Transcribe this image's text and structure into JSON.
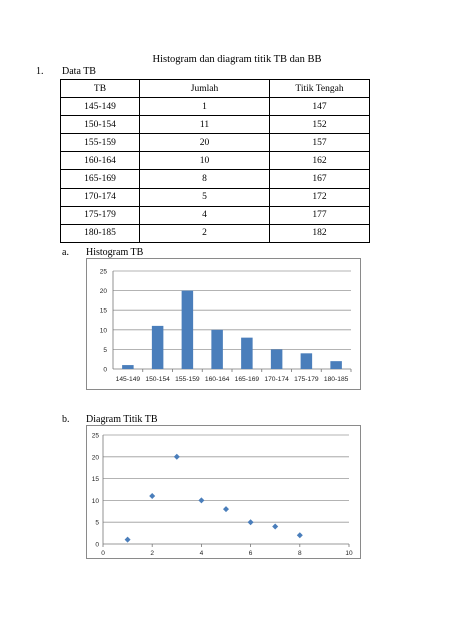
{
  "document": {
    "title": "Histogram dan diagram titik TB dan BB",
    "section1": {
      "number": "1.",
      "label": "Data TB"
    },
    "table": {
      "headers": [
        "TB",
        "Jumlah",
        "Titik Tengah"
      ],
      "rows": [
        [
          "145-149",
          "1",
          "147"
        ],
        [
          "150-154",
          "11",
          "152"
        ],
        [
          "155-159",
          "20",
          "157"
        ],
        [
          "160-164",
          "10",
          "162"
        ],
        [
          "165-169",
          "8",
          "167"
        ],
        [
          "170-174",
          "5",
          "172"
        ],
        [
          "175-179",
          "4",
          "177"
        ],
        [
          "180-185",
          "2",
          "182"
        ]
      ]
    },
    "section_a": {
      "letter": "a.",
      "label": "Histogram TB"
    },
    "section_b": {
      "letter": "b.",
      "label": "Diagram Titik TB"
    }
  },
  "chart_data": [
    {
      "type": "bar",
      "title": "",
      "categories": [
        "145-149",
        "150-154",
        "155-159",
        "160-164",
        "165-169",
        "170-174",
        "175-179",
        "180-185"
      ],
      "values": [
        1,
        11,
        20,
        10,
        8,
        5,
        4,
        2
      ],
      "ylim": [
        0,
        25
      ],
      "yticks": [
        0,
        5,
        10,
        15,
        20,
        25
      ],
      "grid": true,
      "color": "#4a7ebb"
    },
    {
      "type": "scatter",
      "title": "",
      "x": [
        1,
        2,
        3,
        4,
        5,
        6,
        7,
        8
      ],
      "y": [
        1,
        11,
        20,
        10,
        8,
        5,
        4,
        2
      ],
      "xlim": [
        0,
        10
      ],
      "ylim": [
        0,
        25
      ],
      "xticks": [
        0,
        2,
        4,
        6,
        8,
        10
      ],
      "yticks": [
        0,
        5,
        10,
        15,
        20,
        25
      ],
      "grid": true,
      "marker": "diamond",
      "color": "#4a7ebb"
    }
  ]
}
